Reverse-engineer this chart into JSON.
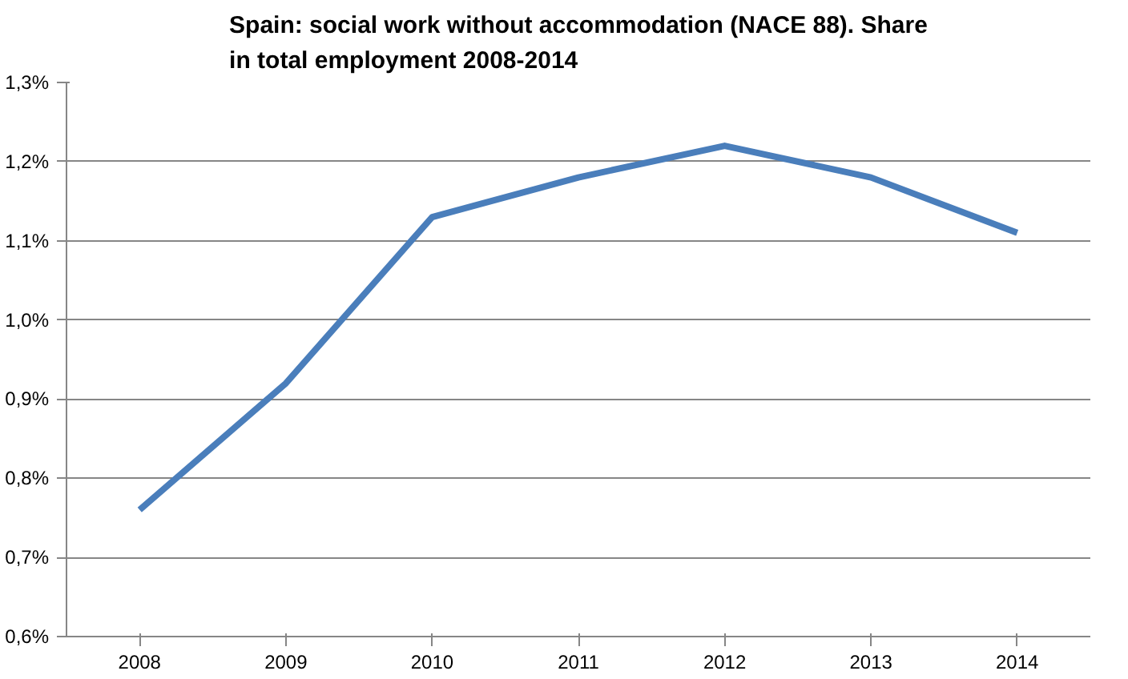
{
  "chart_data": {
    "type": "line",
    "title": "Spain: social work without accommodation (NACE 88). Share in total employment 2008-2014",
    "categories": [
      "2008",
      "2009",
      "2010",
      "2011",
      "2012",
      "2013",
      "2014"
    ],
    "series": [
      {
        "color": "#4a7ebb",
        "values": [
          0.76,
          0.92,
          1.13,
          1.18,
          1.22,
          1.18,
          1.11
        ]
      }
    ],
    "ylim": [
      0.6,
      1.3
    ],
    "yticks": [
      {
        "value": 0.6,
        "label": "0,6%"
      },
      {
        "value": 0.7,
        "label": "0,7%"
      },
      {
        "value": 0.8,
        "label": "0,8%"
      },
      {
        "value": 0.9,
        "label": "0,9%"
      },
      {
        "value": 1.0,
        "label": "1,0%"
      },
      {
        "value": 1.1,
        "label": "1,1%"
      },
      {
        "value": 1.2,
        "label": "1,2%"
      },
      {
        "value": 1.3,
        "label": "1,3%"
      }
    ],
    "grid": "y",
    "marker": "none",
    "line_style": "solid"
  }
}
